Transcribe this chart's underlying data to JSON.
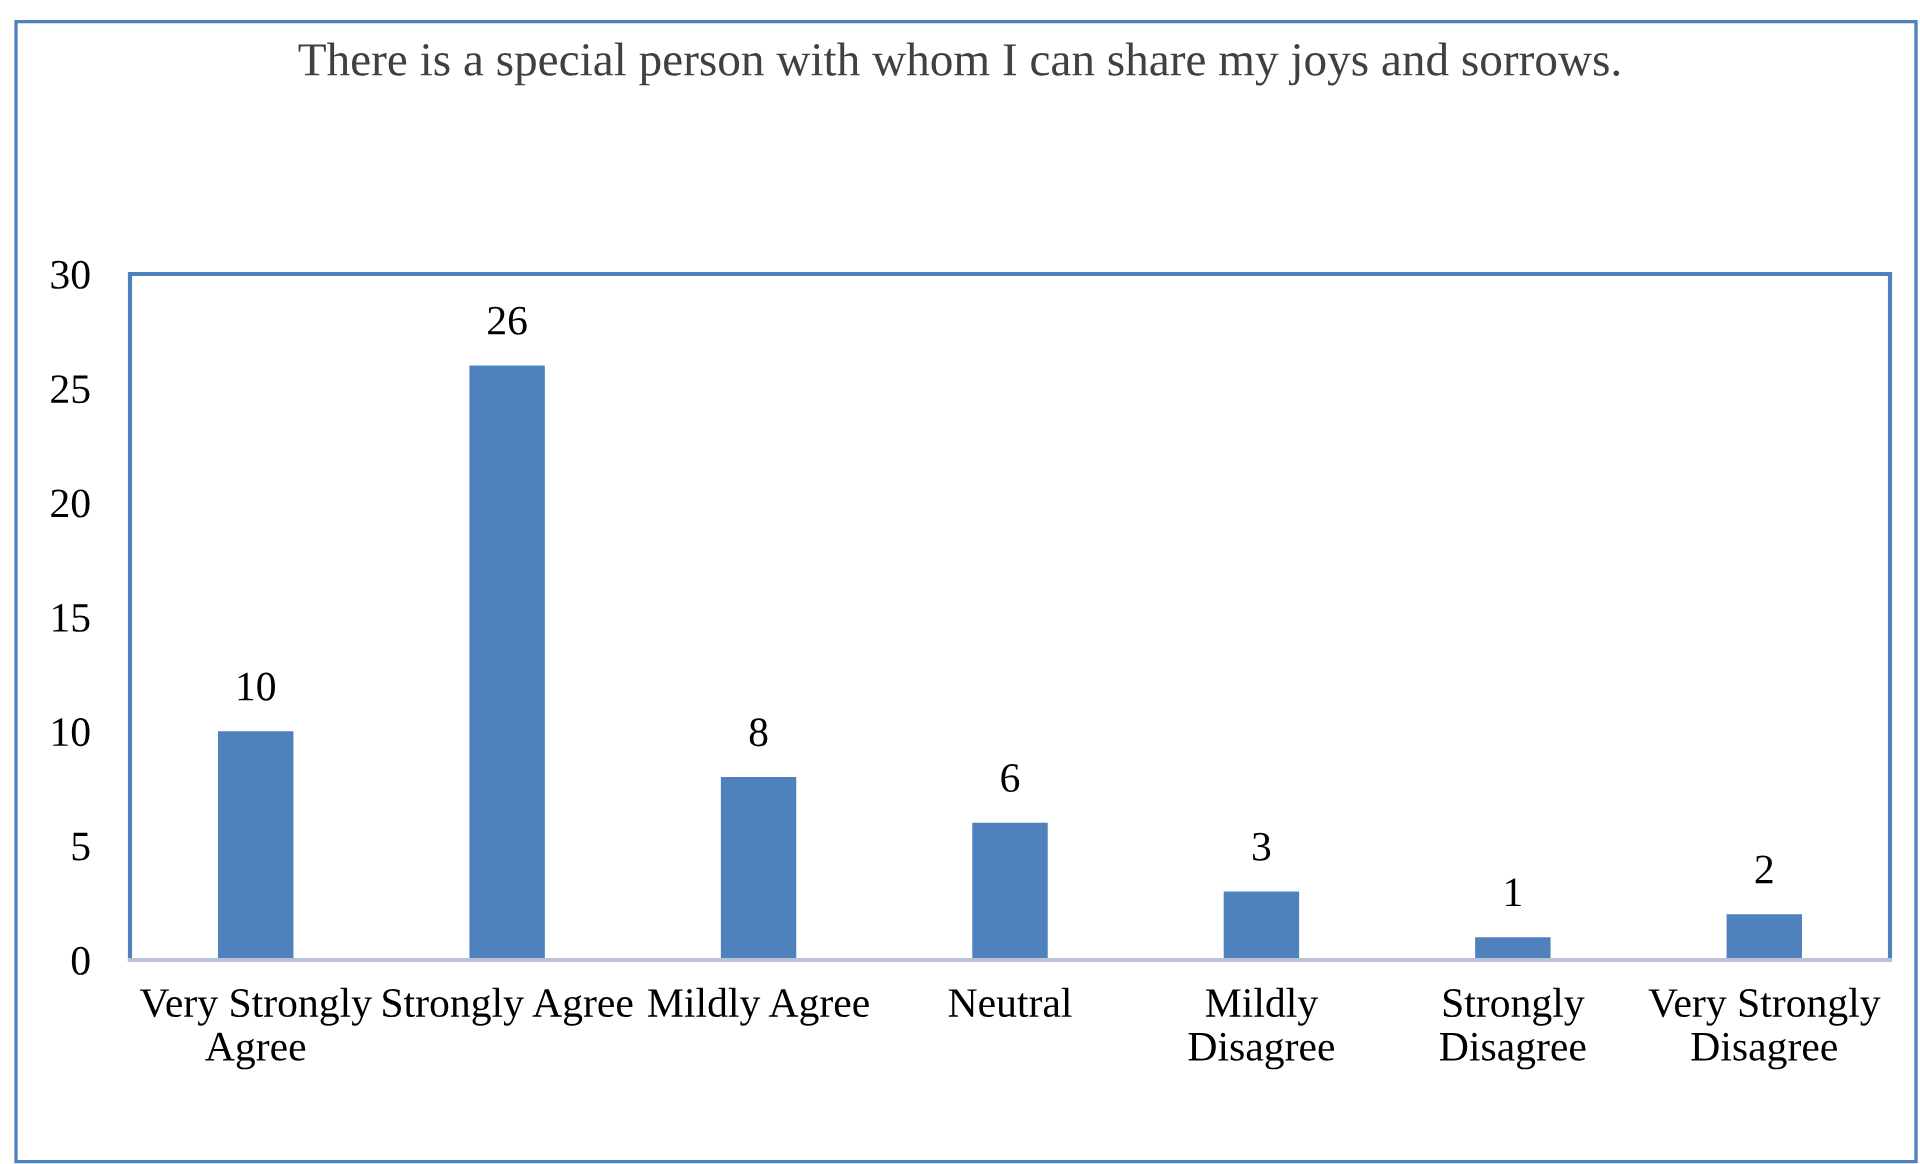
{
  "chart_data": {
    "type": "bar",
    "title": "There is a special person with whom I can share my joys and sorrows.",
    "categories": [
      "Very Strongly Agree",
      "Strongly Agree",
      "Mildly Agree",
      "Neutral",
      "Mildly Disagree",
      "Strongly Disagree",
      "Very Strongly Disagree"
    ],
    "values": [
      10,
      26,
      8,
      6,
      3,
      1,
      2
    ],
    "color": "#4f81bd",
    "ylim": [
      0,
      30
    ],
    "yticks": [
      0,
      5,
      10,
      15,
      20,
      25,
      30
    ],
    "grid": false,
    "legend": false,
    "data_labels": true
  }
}
